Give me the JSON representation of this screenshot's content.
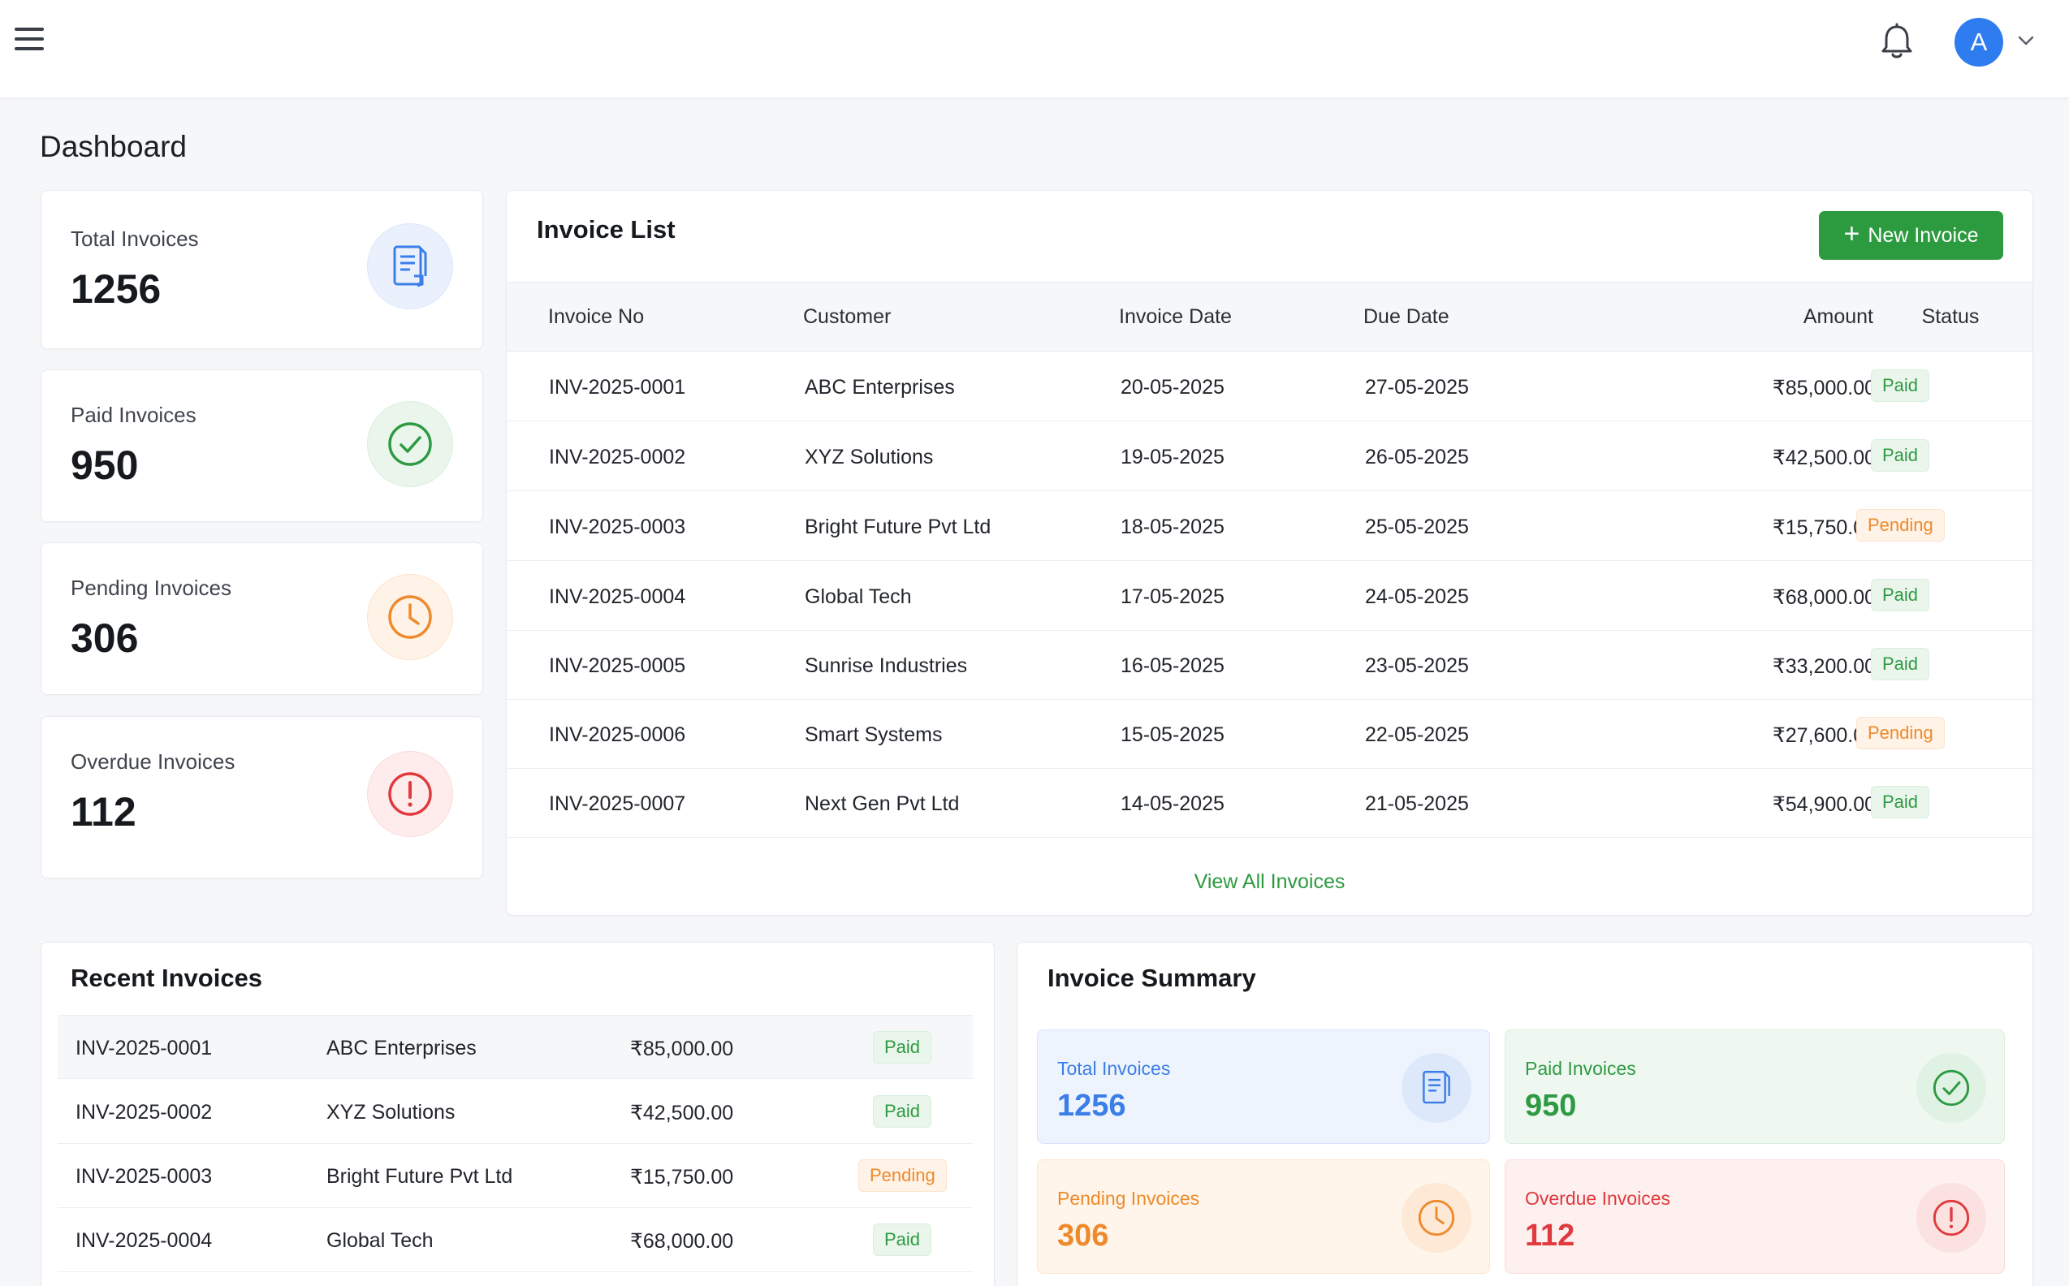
{
  "header": {
    "avatar_initial": "A"
  },
  "page": {
    "title": "Dashboard"
  },
  "stats": [
    {
      "label": "Total Invoices",
      "value": "1256",
      "icon": "document-icon",
      "color": "#3b7ee8"
    },
    {
      "label": "Paid Invoices",
      "value": "950",
      "icon": "check-circle-icon",
      "color": "#2e9a43"
    },
    {
      "label": "Pending Invoices",
      "value": "306",
      "icon": "clock-icon",
      "color": "#ee8a2b"
    },
    {
      "label": "Overdue Invoices",
      "value": "112",
      "icon": "alert-circle-icon",
      "color": "#e0393e"
    }
  ],
  "invoice_list": {
    "title": "Invoice List",
    "new_button_label": "New Invoice",
    "columns": [
      "Invoice No",
      "Customer",
      "Invoice Date",
      "Due Date",
      "Amount",
      "Status"
    ],
    "rows": [
      {
        "invoice_no": "INV-2025-0001",
        "customer": "ABC Enterprises",
        "invoice_date": "20-05-2025",
        "due_date": "27-05-2025",
        "amount": "₹85,000.00",
        "status": "Paid"
      },
      {
        "invoice_no": "INV-2025-0002",
        "customer": "XYZ Solutions",
        "invoice_date": "19-05-2025",
        "due_date": "26-05-2025",
        "amount": "₹42,500.00",
        "status": "Paid"
      },
      {
        "invoice_no": "INV-2025-0003",
        "customer": "Bright Future Pvt Ltd",
        "invoice_date": "18-05-2025",
        "due_date": "25-05-2025",
        "amount": "₹15,750.00",
        "status": "Pending"
      },
      {
        "invoice_no": "INV-2025-0004",
        "customer": "Global Tech",
        "invoice_date": "17-05-2025",
        "due_date": "24-05-2025",
        "amount": "₹68,000.00",
        "status": "Paid"
      },
      {
        "invoice_no": "INV-2025-0005",
        "customer": "Sunrise Industries",
        "invoice_date": "16-05-2025",
        "due_date": "23-05-2025",
        "amount": "₹33,200.00",
        "status": "Paid"
      },
      {
        "invoice_no": "INV-2025-0006",
        "customer": "Smart Systems",
        "invoice_date": "15-05-2025",
        "due_date": "22-05-2025",
        "amount": "₹27,600.00",
        "status": "Pending"
      },
      {
        "invoice_no": "INV-2025-0007",
        "customer": "Next Gen Pvt Ltd",
        "invoice_date": "14-05-2025",
        "due_date": "21-05-2025",
        "amount": "₹54,900.00",
        "status": "Paid"
      }
    ],
    "view_all_label": "View All Invoices"
  },
  "recent_invoices": {
    "title": "Recent Invoices",
    "rows": [
      {
        "invoice_no": "INV-2025-0001",
        "customer": "ABC Enterprises",
        "amount": "₹85,000.00",
        "status": "Paid"
      },
      {
        "invoice_no": "INV-2025-0002",
        "customer": "XYZ Solutions",
        "amount": "₹42,500.00",
        "status": "Paid"
      },
      {
        "invoice_no": "INV-2025-0003",
        "customer": "Bright Future Pvt Ltd",
        "amount": "₹15,750.00",
        "status": "Pending"
      },
      {
        "invoice_no": "INV-2025-0004",
        "customer": "Global Tech",
        "amount": "₹68,000.00",
        "status": "Paid"
      }
    ]
  },
  "invoice_summary": {
    "title": "Invoice Summary",
    "items": [
      {
        "label": "Total Invoices",
        "value": "1256",
        "icon": "document-icon",
        "color": "#3b7ee8"
      },
      {
        "label": "Paid Invoices",
        "value": "950",
        "icon": "check-circle-icon",
        "color": "#2e9a43"
      },
      {
        "label": "Pending Invoices",
        "value": "306",
        "icon": "clock-icon",
        "color": "#ee8a2b"
      },
      {
        "label": "Overdue Invoices",
        "value": "112",
        "icon": "alert-circle-icon",
        "color": "#e0393e"
      }
    ]
  },
  "colors": {
    "primary_green": "#2c9a3f",
    "avatar_blue": "#2f7cf0",
    "paid": "#2e9a43",
    "pending": "#ee8a2b",
    "overdue": "#e0393e",
    "total": "#3b7ee8"
  }
}
